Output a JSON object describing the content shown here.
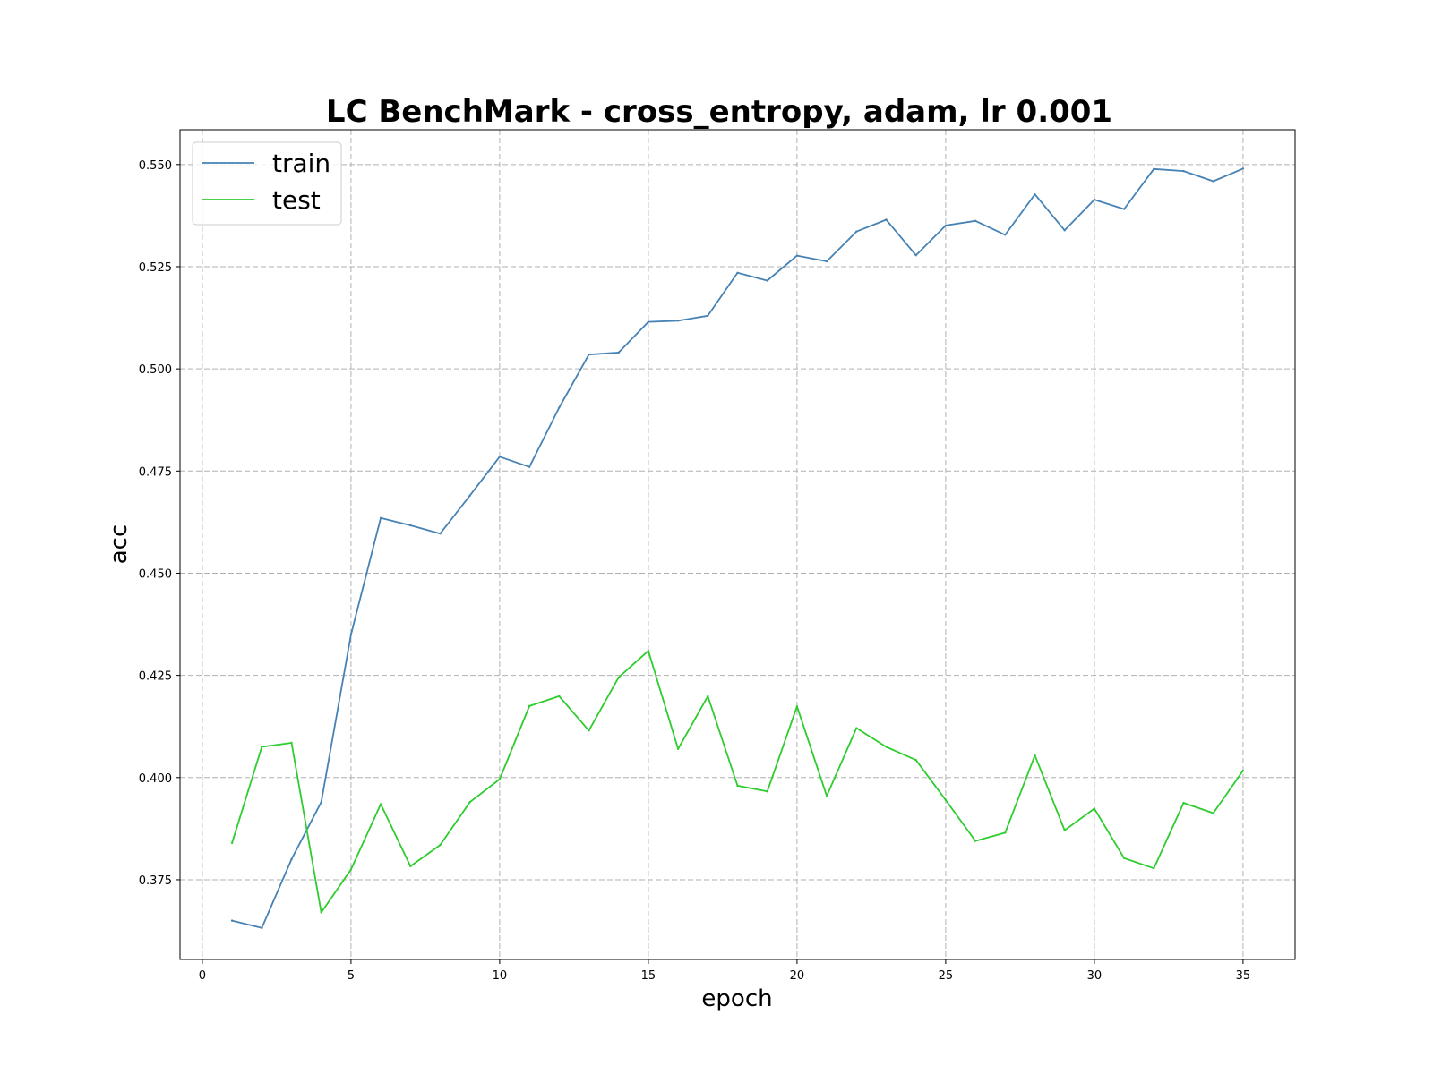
{
  "chart_data": {
    "type": "line",
    "title": "LC BenchMark - cross_entropy, adam, lr 0.001",
    "xlabel": "epoch",
    "ylabel": "acc",
    "xlim": [
      -0.75,
      36.75
    ],
    "ylim": [
      0.3555,
      0.5585
    ],
    "xticks": [
      0,
      5,
      10,
      15,
      20,
      25,
      30,
      35
    ],
    "yticks": [
      0.375,
      0.4,
      0.425,
      0.45,
      0.475,
      0.5,
      0.525,
      0.55
    ],
    "ytick_labels": [
      "0.375",
      "0.400",
      "0.425",
      "0.450",
      "0.475",
      "0.500",
      "0.525",
      "0.550"
    ],
    "grid": true,
    "legend_position": "top-left",
    "x": [
      1,
      2,
      3,
      4,
      5,
      6,
      7,
      8,
      9,
      10,
      11,
      12,
      13,
      14,
      15,
      16,
      17,
      18,
      19,
      20,
      21,
      22,
      23,
      24,
      25,
      26,
      27,
      28,
      29,
      30,
      31,
      32,
      33,
      34,
      35
    ],
    "series": [
      {
        "name": "train",
        "color": "#4682b4",
        "values": [
          0.365,
          0.3632,
          0.38,
          0.394,
          0.435,
          0.4635,
          0.4617,
          0.4597,
          0.469,
          0.4785,
          0.476,
          0.4905,
          0.5035,
          0.504,
          0.5115,
          0.5118,
          0.513,
          0.5235,
          0.5216,
          0.5277,
          0.5263,
          0.5336,
          0.5365,
          0.5278,
          0.5351,
          0.5362,
          0.5328,
          0.5427,
          0.5339,
          0.5414,
          0.5391,
          0.5489,
          0.5484,
          0.5459,
          0.549
        ]
      },
      {
        "name": "test",
        "color": "#2ecc2e",
        "values": [
          0.384,
          0.4075,
          0.4085,
          0.367,
          0.3775,
          0.3935,
          0.3783,
          0.3835,
          0.394,
          0.3996,
          0.4175,
          0.4199,
          0.4115,
          0.4245,
          0.431,
          0.407,
          0.4199,
          0.398,
          0.3966,
          0.4174,
          0.3955,
          0.4121,
          0.4075,
          0.4043,
          0.3945,
          0.3845,
          0.3865,
          0.4054,
          0.3871,
          0.3924,
          0.3803,
          0.3778,
          0.3938,
          0.3913,
          0.4017
        ]
      }
    ]
  }
}
